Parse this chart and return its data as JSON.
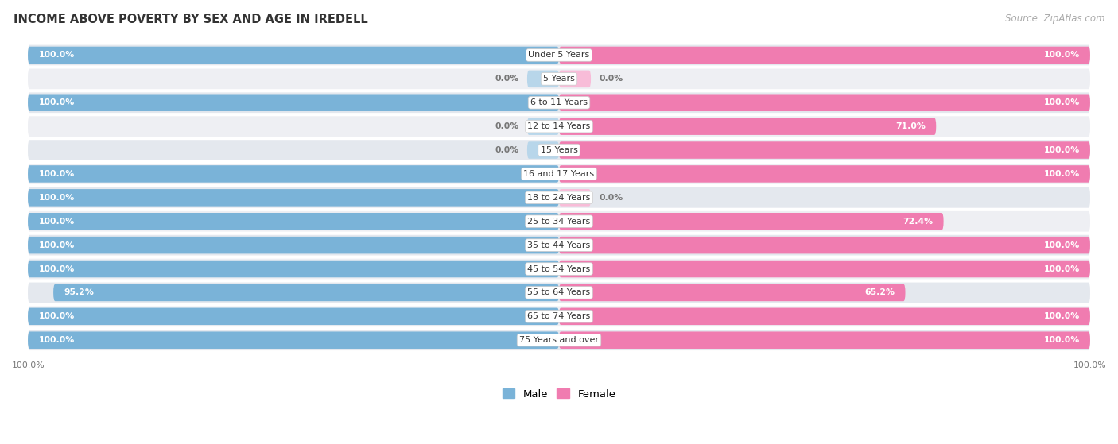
{
  "title": "INCOME ABOVE POVERTY BY SEX AND AGE IN IREDELL",
  "source": "Source: ZipAtlas.com",
  "categories": [
    "Under 5 Years",
    "5 Years",
    "6 to 11 Years",
    "12 to 14 Years",
    "15 Years",
    "16 and 17 Years",
    "18 to 24 Years",
    "25 to 34 Years",
    "35 to 44 Years",
    "45 to 54 Years",
    "55 to 64 Years",
    "65 to 74 Years",
    "75 Years and over"
  ],
  "male_values": [
    100.0,
    0.0,
    100.0,
    0.0,
    0.0,
    100.0,
    100.0,
    100.0,
    100.0,
    100.0,
    95.2,
    100.0,
    100.0
  ],
  "female_values": [
    100.0,
    0.0,
    100.0,
    71.0,
    100.0,
    100.0,
    0.0,
    72.4,
    100.0,
    100.0,
    65.2,
    100.0,
    100.0
  ],
  "male_color": "#7ab3d8",
  "female_color": "#f07cb0",
  "male_stub_color": "#b8d6ea",
  "female_stub_color": "#f8bcd8",
  "row_bg_dark": "#e4e8ee",
  "row_bg_light": "#eeeff3",
  "label_white": "#ffffff",
  "label_dark": "#777777",
  "max_val": 100.0,
  "stub_val": 6.0
}
